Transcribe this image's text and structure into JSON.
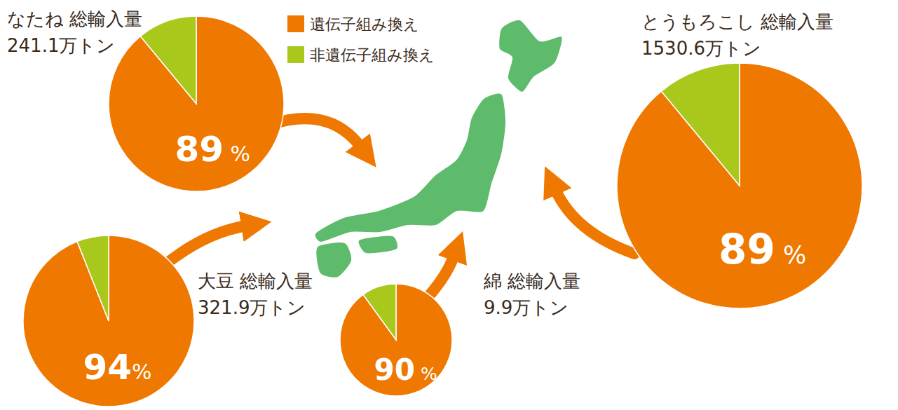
{
  "chart_data": [
    {
      "type": "pie",
      "title": "なたね 総輸入量",
      "subtitle": "241.1万トン",
      "categories": [
        "遺伝子組み換え",
        "非遺伝子組み換え"
      ],
      "values": [
        89,
        11
      ],
      "colors": [
        "#ee7800",
        "#a8c81c"
      ],
      "value_labels": [
        "89 %",
        null
      ],
      "data_labels": true,
      "legend": "top"
    },
    {
      "type": "pie",
      "title": "大豆 総輸入量",
      "subtitle": "321.9万トン",
      "categories": [
        "遺伝子組み換え",
        "非遺伝子組み換え"
      ],
      "values": [
        94,
        6
      ],
      "colors": [
        "#ee7800",
        "#a8c81c"
      ],
      "value_labels": [
        "94%",
        null
      ],
      "data_labels": true,
      "legend": "top"
    },
    {
      "type": "pie",
      "title": "綿 総輸入量",
      "subtitle": "9.9万トン",
      "categories": [
        "遺伝子組み換え",
        "非遺伝子組み換え"
      ],
      "values": [
        90,
        10
      ],
      "colors": [
        "#ee7800",
        "#a8c81c"
      ],
      "value_labels": [
        "90 %",
        null
      ],
      "data_labels": true,
      "legend": "top"
    },
    {
      "type": "pie",
      "title": "とうもろこし 総輸入量",
      "subtitle": "1530.6万トン",
      "categories": [
        "遺伝子組み換え",
        "非遺伝子組み換え"
      ],
      "values": [
        89,
        11
      ],
      "colors": [
        "#ee7800",
        "#a8c81c"
      ],
      "value_labels": [
        "89 %",
        null
      ],
      "data_labels": true,
      "legend": "top"
    }
  ]
}
